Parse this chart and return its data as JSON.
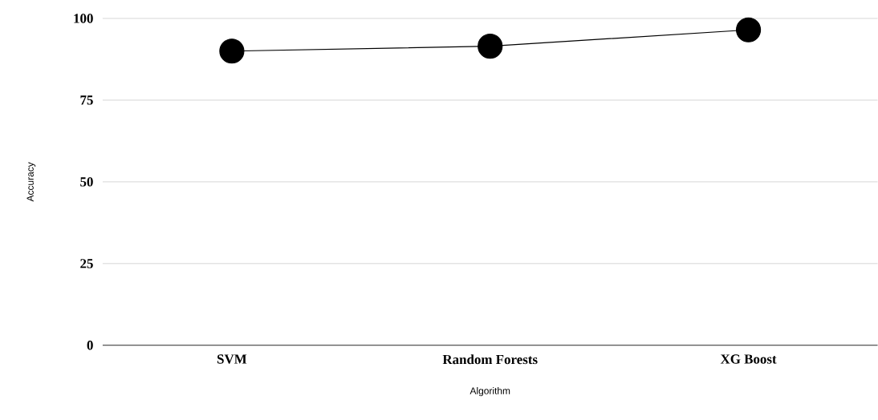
{
  "chart_data": {
    "type": "line",
    "xlabel": "Algorithm",
    "ylabel": "Accuracy",
    "categories": [
      "SVM",
      "Random Forests",
      "XG Boost"
    ],
    "series": [
      {
        "color": "#000000",
        "values": [
          90,
          91.5,
          96.5
        ]
      }
    ],
    "ylim": [
      0,
      100
    ],
    "yticks": [
      0,
      25,
      50,
      75,
      100
    ],
    "grid": "y",
    "marker": "circle",
    "line_style": "solid"
  }
}
